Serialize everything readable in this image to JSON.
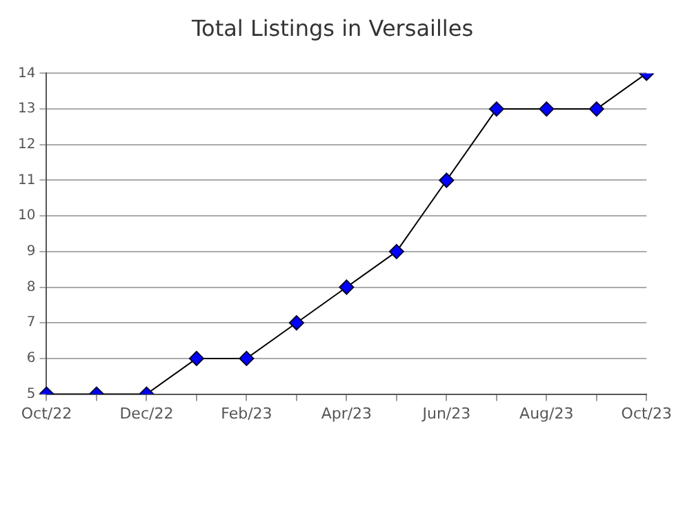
{
  "chart_data": {
    "type": "line",
    "title": "Total Listings in Versailles",
    "categories": [
      "Oct/22",
      null,
      "Dec/22",
      null,
      "Feb/23",
      null,
      "Apr/23",
      null,
      "Jun/23",
      null,
      "Aug/23",
      null,
      "Oct/23"
    ],
    "series": [
      {
        "color": "#0000ff",
        "values": [
          5,
          5,
          5,
          6,
          6,
          7,
          8,
          9,
          11,
          13,
          13,
          13,
          14
        ]
      }
    ],
    "ylim": [
      5,
      14
    ],
    "yticks": [
      5,
      6,
      7,
      8,
      9,
      10,
      11,
      12,
      13,
      14
    ],
    "grid": "y",
    "legend": false,
    "marker": "diamond",
    "line_style": "solid"
  }
}
